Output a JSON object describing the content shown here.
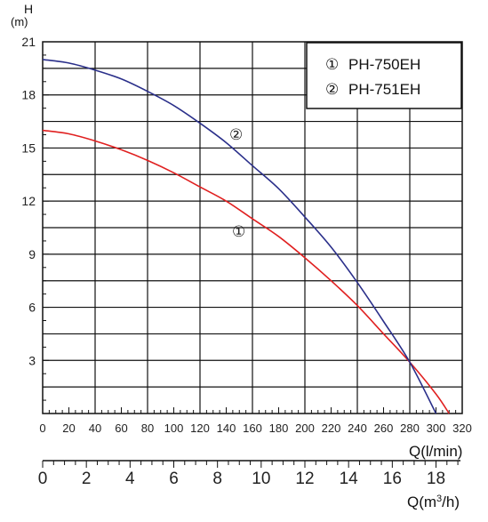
{
  "chart_data": {
    "type": "line",
    "y_axis": {
      "unit_title": "H",
      "unit_sub": "(m)",
      "range": [
        0,
        21
      ],
      "ticks": [
        3,
        6,
        9,
        12,
        15,
        18,
        21
      ]
    },
    "x_axis_primary": {
      "label": "Q(l/min)",
      "range": [
        0,
        320
      ],
      "ticks": [
        0,
        20,
        40,
        60,
        80,
        100,
        120,
        140,
        160,
        180,
        200,
        220,
        240,
        260,
        280,
        300,
        320
      ]
    },
    "x_axis_secondary": {
      "label": "Q(m³/h)",
      "label_main": "Q(m",
      "label_sup": "3",
      "label_tail": "/h)",
      "range": [
        0,
        19.2
      ],
      "ticks": [
        0,
        2,
        4,
        6,
        8,
        10,
        12,
        14,
        16,
        18
      ]
    },
    "grid": true,
    "legend_position": "top-right",
    "series": [
      {
        "name": "PH-750EH",
        "marker": "①",
        "color": "#e02020",
        "x": [
          0,
          20,
          40,
          60,
          80,
          100,
          120,
          140,
          160,
          180,
          200,
          220,
          240,
          260,
          280,
          300,
          310
        ],
        "y": [
          16.0,
          15.8,
          15.4,
          14.9,
          14.3,
          13.6,
          12.8,
          12.0,
          11.0,
          10.0,
          8.8,
          7.5,
          6.1,
          4.5,
          2.9,
          1.1,
          0.0
        ]
      },
      {
        "name": "PH-751EH",
        "marker": "②",
        "color": "#2a2f8a",
        "x": [
          0,
          20,
          40,
          60,
          80,
          100,
          120,
          140,
          160,
          180,
          200,
          220,
          240,
          260,
          280,
          300
        ],
        "y": [
          20.0,
          19.8,
          19.4,
          18.9,
          18.2,
          17.4,
          16.4,
          15.3,
          14.0,
          12.7,
          11.1,
          9.4,
          7.4,
          5.2,
          2.9,
          0.0
        ]
      }
    ],
    "curve_labels": [
      "②",
      "①"
    ]
  }
}
